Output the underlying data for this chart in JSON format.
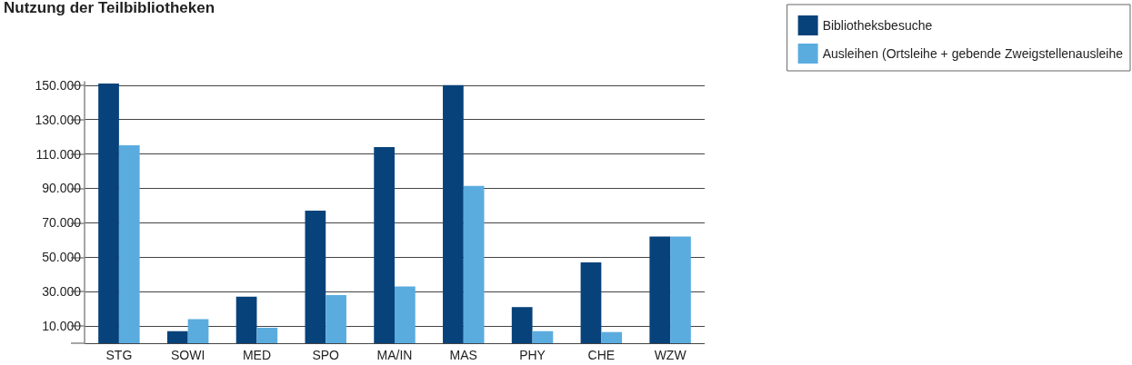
{
  "chart_data": {
    "type": "bar",
    "title": "Nutzung der Teilbibliotheken",
    "categories": [
      "STG",
      "SOWI",
      "MED",
      "SPO",
      "MA/IN",
      "MAS",
      "PHY",
      "CHE",
      "WZW"
    ],
    "series": [
      {
        "name": "Bibliotheksbesuche",
        "color": "#08427a",
        "values": [
          151000,
          7000,
          27000,
          77000,
          114000,
          150000,
          21000,
          47000,
          62000
        ]
      },
      {
        "name": "Ausleihen (Ortsleihe + gebende Zweigstellenausleihe",
        "color": "#5aacdf",
        "values": [
          115000,
          14000,
          9000,
          28000,
          33000,
          91500,
          7000,
          6500,
          62000
        ]
      }
    ],
    "ylim": [
      0,
      152000
    ],
    "yticks": [
      {
        "value": 0,
        "label": null
      },
      {
        "value": 10000,
        "label": "10.000"
      },
      {
        "value": 30000,
        "label": "30.000"
      },
      {
        "value": 50000,
        "label": "50.000"
      },
      {
        "value": 70000,
        "label": "70.000"
      },
      {
        "value": 90000,
        "label": "90.000"
      },
      {
        "value": 110000,
        "label": "110.000"
      },
      {
        "value": 130000,
        "label": "130.000"
      },
      {
        "value": 150000,
        "label": "150.000"
      }
    ],
    "grid": "y",
    "legend": "top right"
  }
}
